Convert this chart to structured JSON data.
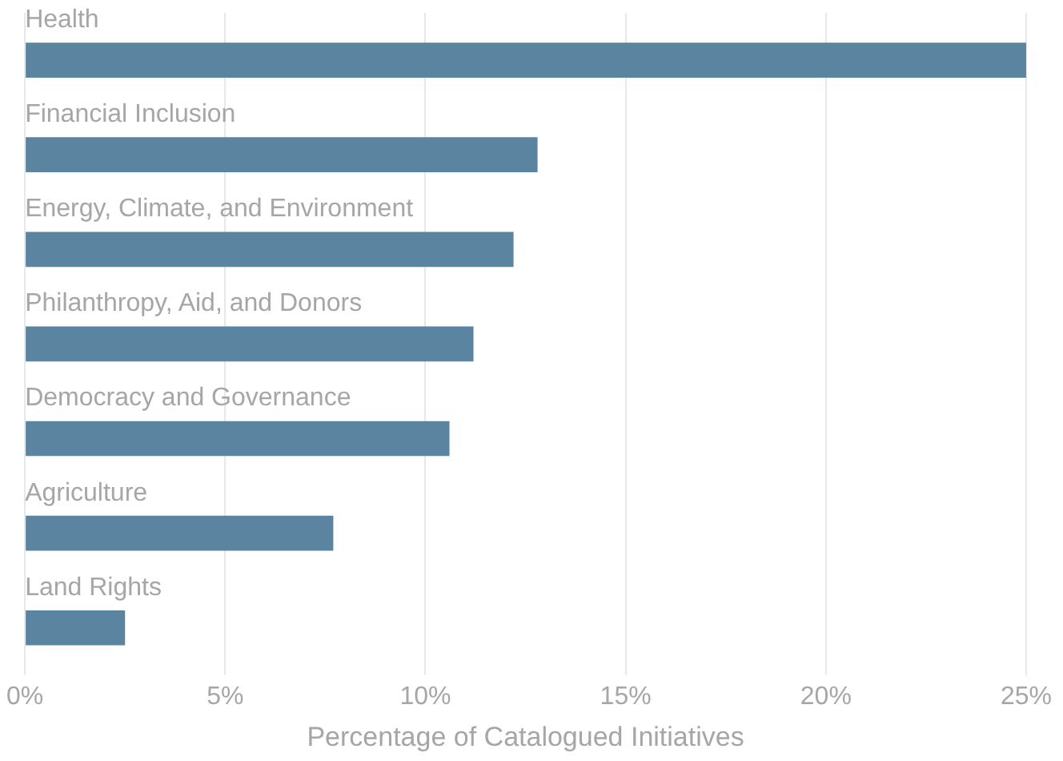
{
  "chart_data": {
    "type": "bar",
    "orientation": "horizontal",
    "xlabel": "Percentage of Catalogued Initiatives",
    "categories": [
      "Health",
      "Financial Inclusion",
      "Energy, Climate, and Environment",
      "Philanthropy, Aid, and Donors",
      "Democracy and Governance",
      "Agriculture",
      "Land Rights"
    ],
    "values": [
      25,
      12.8,
      12.2,
      11.2,
      10.6,
      7.7,
      2.5
    ],
    "color": "#5b84a0",
    "xlim": [
      0,
      25
    ],
    "xticks": [
      {
        "value": 0,
        "label": "0%"
      },
      {
        "value": 5,
        "label": "5%"
      },
      {
        "value": 10,
        "label": "10%"
      },
      {
        "value": 15,
        "label": "15%"
      },
      {
        "value": 20,
        "label": "20%"
      },
      {
        "value": 25,
        "label": "25%"
      }
    ],
    "grid": "x",
    "legend": false
  }
}
